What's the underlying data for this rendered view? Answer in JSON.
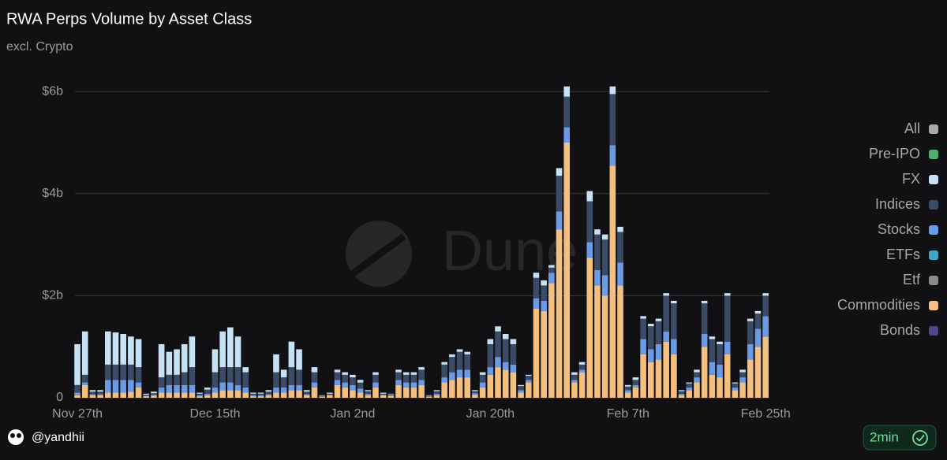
{
  "chart_data": {
    "type": "bar",
    "stacked": true,
    "title": "RWA Perps Volume by Asset Class",
    "subtitle": "excl. Crypto",
    "watermark": "Dune",
    "ylim": [
      0,
      6.25
    ],
    "yticks": [
      0,
      {
        "value": 2,
        "label": "$2b"
      },
      {
        "value": 4,
        "label": "$4b"
      },
      {
        "value": 6,
        "label": "$6b"
      }
    ],
    "grid": true,
    "legend_position": "right",
    "categories": [
      "Nov 27th",
      null,
      null,
      null,
      null,
      null,
      null,
      null,
      null,
      null,
      null,
      null,
      null,
      null,
      null,
      null,
      null,
      null,
      "Dec 15th",
      null,
      null,
      null,
      null,
      null,
      null,
      null,
      null,
      null,
      null,
      null,
      null,
      null,
      null,
      null,
      null,
      null,
      "Jan 2nd",
      null,
      null,
      null,
      null,
      null,
      null,
      null,
      null,
      null,
      null,
      null,
      null,
      null,
      null,
      null,
      null,
      null,
      "Jan 20th",
      null,
      null,
      null,
      null,
      null,
      null,
      null,
      null,
      null,
      null,
      null,
      null,
      null,
      null,
      null,
      null,
      null,
      "Feb 7th",
      null,
      null,
      null,
      null,
      null,
      null,
      null,
      null,
      null,
      null,
      null,
      null,
      null,
      null,
      null,
      null,
      null,
      "Feb 25th"
    ],
    "series": [
      {
        "name": "Commodities",
        "color": "#f5c07e",
        "values": [
          0.05,
          0.25,
          0.05,
          0.05,
          0.1,
          0.1,
          0.1,
          0.12,
          0.2,
          0.03,
          0.04,
          0.1,
          0.1,
          0.1,
          0.1,
          0.1,
          0.03,
          0.05,
          0.1,
          0.15,
          0.15,
          0.15,
          0.1,
          0.03,
          0.03,
          0.05,
          0.1,
          0.1,
          0.15,
          0.15,
          0.05,
          0.2,
          0.02,
          0.05,
          0.25,
          0.2,
          0.15,
          0.1,
          0.05,
          0.2,
          0.05,
          0.04,
          0.25,
          0.2,
          0.2,
          0.25,
          0.02,
          0.05,
          0.3,
          0.35,
          0.4,
          0.4,
          0.06,
          0.2,
          0.45,
          0.6,
          0.55,
          0.5,
          0.1,
          0.3,
          1.75,
          1.7,
          2.25,
          3.3,
          5.0,
          0.3,
          0.5,
          2.75,
          2.2,
          2.0,
          4.55,
          2.2,
          0.1,
          0.2,
          0.85,
          0.7,
          0.75,
          1.1,
          0.85,
          0.05,
          0.15,
          0.3,
          1.0,
          0.45,
          0.4,
          0.85,
          0.15,
          0.3,
          0.75,
          1.0,
          1.2
        ]
      },
      {
        "name": "Stocks",
        "color": "#6a9be8",
        "values": [
          0.05,
          0.05,
          0.02,
          0.02,
          0.25,
          0.25,
          0.25,
          0.23,
          0.1,
          0.01,
          0.02,
          0.1,
          0.15,
          0.15,
          0.15,
          0.15,
          0.02,
          0.03,
          0.1,
          0.15,
          0.15,
          0.1,
          0.1,
          0.02,
          0.02,
          0.02,
          0.1,
          0.1,
          0.1,
          0.1,
          0.02,
          0.1,
          0.01,
          0.01,
          0.1,
          0.1,
          0.1,
          0.08,
          0.03,
          0.1,
          0.01,
          0.01,
          0.1,
          0.1,
          0.1,
          0.1,
          0.01,
          0.03,
          0.1,
          0.15,
          0.15,
          0.15,
          0.03,
          0.1,
          0.15,
          0.2,
          0.15,
          0.15,
          0.05,
          0.05,
          0.2,
          0.2,
          0.2,
          0.35,
          0.3,
          0.05,
          0.05,
          0.3,
          0.3,
          0.4,
          0.4,
          0.45,
          0.05,
          0.05,
          0.3,
          0.25,
          0.3,
          0.2,
          0.3,
          0.03,
          0.05,
          0.1,
          0.25,
          0.25,
          0.25,
          0.25,
          0.05,
          0.1,
          0.3,
          0.35,
          0.4
        ]
      },
      {
        "name": "Indices",
        "color": "#3b4a66",
        "values": [
          0.15,
          0.15,
          0.05,
          0.05,
          0.3,
          0.3,
          0.3,
          0.3,
          0.3,
          0.02,
          0.03,
          0.2,
          0.2,
          0.2,
          0.25,
          0.35,
          0.03,
          0.08,
          0.3,
          0.3,
          0.3,
          0.35,
          0.3,
          0.03,
          0.03,
          0.05,
          0.3,
          0.2,
          0.35,
          0.3,
          0.05,
          0.2,
          0.01,
          0.02,
          0.15,
          0.15,
          0.15,
          0.12,
          0.05,
          0.15,
          0.02,
          0.02,
          0.15,
          0.15,
          0.15,
          0.2,
          0.01,
          0.05,
          0.25,
          0.3,
          0.35,
          0.3,
          0.04,
          0.15,
          0.45,
          0.5,
          0.45,
          0.4,
          0.08,
          0.08,
          0.4,
          0.3,
          0.1,
          0.7,
          0.6,
          0.1,
          0.1,
          0.8,
          0.7,
          0.7,
          1.0,
          0.6,
          0.07,
          0.1,
          0.4,
          0.45,
          0.45,
          0.7,
          0.7,
          0.05,
          0.08,
          0.1,
          0.6,
          0.45,
          0.4,
          0.9,
          0.08,
          0.1,
          0.45,
          0.3,
          0.4
        ]
      },
      {
        "name": "FX",
        "color": "#c6e3f5",
        "values": [
          0.8,
          0.85,
          0.03,
          0.03,
          0.65,
          0.63,
          0.6,
          0.55,
          0.55,
          0.02,
          0.03,
          0.65,
          0.45,
          0.5,
          0.55,
          0.6,
          0.02,
          0.04,
          0.45,
          0.7,
          0.78,
          0.6,
          0.1,
          0.02,
          0.02,
          0.03,
          0.35,
          0.15,
          0.5,
          0.4,
          0.03,
          0.1,
          0.01,
          0.02,
          0.05,
          0.05,
          0.05,
          0.05,
          0.02,
          0.05,
          0.02,
          0.01,
          0.05,
          0.05,
          0.05,
          0.05,
          0.01,
          0.02,
          0.05,
          0.05,
          0.05,
          0.05,
          0.02,
          0.05,
          0.1,
          0.1,
          0.1,
          0.1,
          0.02,
          0.02,
          0.1,
          0.1,
          0.05,
          0.15,
          0.2,
          0.05,
          0.05,
          0.2,
          0.1,
          0.1,
          0.15,
          0.1,
          0.03,
          0.05,
          0.05,
          0.05,
          0.05,
          0.05,
          0.05,
          0.02,
          0.02,
          0.05,
          0.05,
          0.05,
          0.05,
          0.05,
          0.02,
          0.05,
          0.05,
          0.05,
          0.05
        ]
      }
    ],
    "legend": [
      {
        "name": "All",
        "color": "#a8a8a8"
      },
      {
        "name": "Pre-IPO",
        "color": "#4caf6e"
      },
      {
        "name": "FX",
        "color": "#c6e3f5"
      },
      {
        "name": "Indices",
        "color": "#3b4a66"
      },
      {
        "name": "Stocks",
        "color": "#6a9be8"
      },
      {
        "name": "ETFs",
        "color": "#3fa8c8"
      },
      {
        "name": "Etf",
        "color": "#8a8a8a"
      },
      {
        "name": "Commodities",
        "color": "#f5c07e"
      },
      {
        "name": "Bonds",
        "color": "#4a4a8a"
      }
    ]
  },
  "footer": {
    "author": "@yandhii",
    "refresh": "2min"
  }
}
